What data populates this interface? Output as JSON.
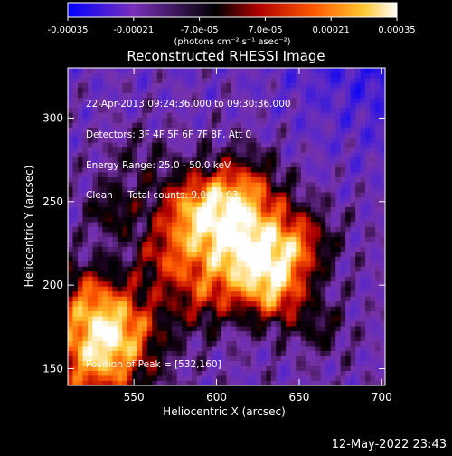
{
  "colorbar": {
    "ticks": [
      "-0.00035",
      "-0.00021",
      "-7.0e-05",
      "7.0e-05",
      "0.00021",
      "0.00035"
    ],
    "unit_label": "(photons cm⁻² s⁻¹ asec⁻²)"
  },
  "chart_data": {
    "type": "heatmap",
    "title": "Reconstructed RHESSI Image",
    "xlabel": "Heliocentric X (arcsec)",
    "ylabel": "Heliocentric Y (arcsec)",
    "xlim": [
      510,
      702
    ],
    "ylim": [
      140,
      330
    ],
    "x_ticks": [
      550,
      600,
      650,
      700
    ],
    "y_ticks": [
      150,
      200,
      250,
      300
    ],
    "x_tick_labels": [
      "550",
      "600",
      "650",
      "700"
    ],
    "y_tick_labels": [
      "150",
      "200",
      "250",
      "300"
    ],
    "value_range": [
      -0.00035,
      0.00035
    ],
    "colormap": [
      "#0000ff",
      "#8c36b5",
      "#000000",
      "#c40000",
      "#ff6a00",
      "#ffd54a",
      "#ffffff"
    ],
    "peak": [
      532,
      160
    ],
    "annotations": {
      "time_range": "22-Apr-2013 09:24:36.000 to 09:30:36.000",
      "detectors": "Detectors: 3F 4F 5F 6F 7F 8F, Att 0",
      "energy": "Energy Range: 25.0 - 50.0 keV",
      "method": "Clean",
      "counts": "Total counts: 9.04E+03",
      "peak_text": "Position of Peak = [532,160]"
    }
  },
  "footer": {
    "timestamp": "12-May-2022 23:43"
  }
}
